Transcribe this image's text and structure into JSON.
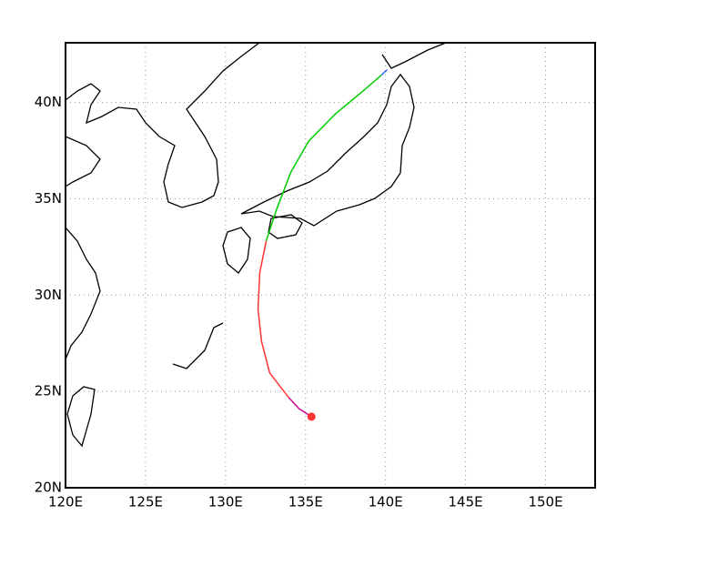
{
  "chart_data": {
    "type": "track",
    "xlim": [
      120,
      153.1
    ],
    "ylim": [
      20,
      43.1
    ],
    "xticks": [
      {
        "value": 120,
        "label": "120E"
      },
      {
        "value": 125,
        "label": "125E"
      },
      {
        "value": 130,
        "label": "130E"
      },
      {
        "value": 135,
        "label": "135E"
      },
      {
        "value": 140,
        "label": "140E"
      },
      {
        "value": 145,
        "label": "145E"
      },
      {
        "value": 150,
        "label": "150E"
      }
    ],
    "yticks": [
      {
        "value": 20,
        "label": "20N"
      },
      {
        "value": 25,
        "label": "25N"
      },
      {
        "value": 30,
        "label": "30N"
      },
      {
        "value": 35,
        "label": "35N"
      },
      {
        "value": 40,
        "label": "40N"
      }
    ],
    "grid": true,
    "series": [
      {
        "color": "#cc0099",
        "x": [
          135.37,
          134.6,
          133.95
        ],
        "values": [
          23.69,
          24.1,
          24.68
        ]
      },
      {
        "color": "#ff3333",
        "x": [
          133.95,
          132.76,
          132.25,
          132.03,
          132.14,
          132.54
        ],
        "values": [
          24.68,
          25.96,
          27.6,
          29.27,
          31.16,
          32.81
        ]
      },
      {
        "color": "#00cc00",
        "x": [
          132.54,
          133.2,
          134.07,
          135.2,
          136.9,
          138.6,
          139.74
        ],
        "values": [
          32.81,
          34.47,
          36.36,
          38.0,
          39.43,
          40.6,
          41.42
        ]
      },
      {
        "color": "#3366ff",
        "x": [
          139.74,
          140.1
        ],
        "values": [
          41.42,
          41.7
        ]
      }
    ],
    "marker": {
      "x": 135.37,
      "y": 23.69,
      "color": "#ff3333"
    }
  }
}
